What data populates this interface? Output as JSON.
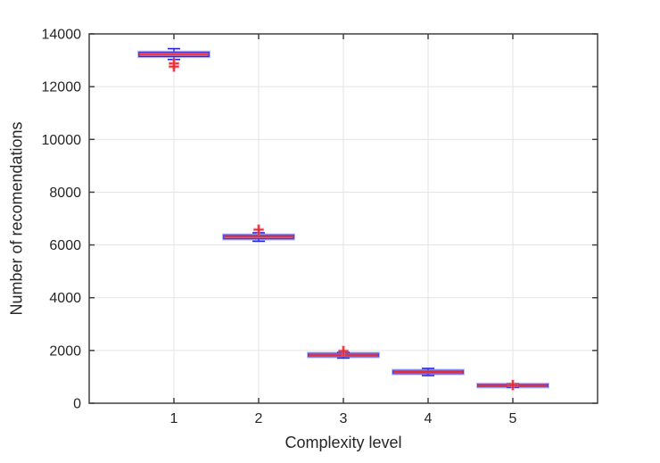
{
  "chart_data": {
    "type": "boxplot",
    "title": "",
    "xlabel": "Complexity level",
    "ylabel": "Number of recomendations",
    "xlim": [
      0,
      6
    ],
    "ylim": [
      0,
      14000
    ],
    "x_ticks": [
      1,
      2,
      3,
      4,
      5
    ],
    "y_ticks": [
      0,
      2000,
      4000,
      6000,
      8000,
      10000,
      12000,
      14000
    ],
    "grid": true,
    "legend": "none",
    "categories": [
      "1",
      "2",
      "3",
      "4",
      "5"
    ],
    "series": [
      {
        "complexity": 1,
        "median": 13230,
        "q1": 13150,
        "q3": 13300,
        "whisker_low": 13030,
        "whisker_high": 13440,
        "outliers": [
          12880,
          12760
        ]
      },
      {
        "complexity": 2,
        "median": 6310,
        "q1": 6240,
        "q3": 6370,
        "whisker_low": 6140,
        "whisker_high": 6460,
        "outliers": [
          6580
        ]
      },
      {
        "complexity": 3,
        "median": 1825,
        "q1": 1775,
        "q3": 1880,
        "whisker_low": 1710,
        "whisker_high": 1930,
        "outliers": [
          1980
        ]
      },
      {
        "complexity": 4,
        "median": 1185,
        "q1": 1130,
        "q3": 1235,
        "whisker_low": 1050,
        "whisker_high": 1320,
        "outliers": []
      },
      {
        "complexity": 5,
        "median": 680,
        "q1": 630,
        "q3": 715,
        "whisker_low": 600,
        "whisker_high": 740,
        "outliers": [
          690
        ]
      }
    ],
    "colors": {
      "box": "#2222DC",
      "box_glow": "rgba(100,100,235,0.45)",
      "median": "#E22C2C",
      "median_glow": "rgba(255,120,140,0.55)",
      "whisker_cap": "#2222DC",
      "outlier": "#E22C2C",
      "outlier_glow": "rgba(255,110,130,0.5)",
      "grid": "#E3E3E3",
      "frame": "#404040",
      "tick_label": "#262626",
      "background": "#FFFFFF"
    }
  }
}
